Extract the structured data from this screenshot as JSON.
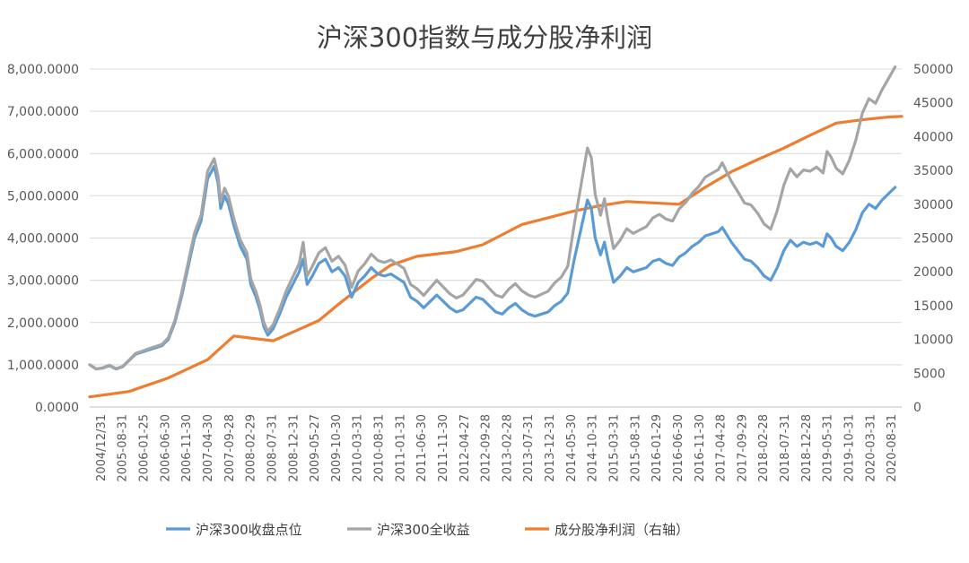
{
  "chart_data": {
    "type": "line",
    "title": "沪深300指数与成分股净利润",
    "x_ticks": [
      "2004/12/31",
      "2005-08-31",
      "2006-01-25",
      "2006-06-30",
      "2006-11-30",
      "2007-04-30",
      "2007-09-28",
      "2008-02-29",
      "2008-07-31",
      "2008-12-31",
      "2009-05-27",
      "2009-10-30",
      "2010-03-31",
      "2010-08-31",
      "2011-01-31",
      "2011-06-30",
      "2011-11-30",
      "2012-04-27",
      "2012-09-28",
      "2013-02-28",
      "2013-07-31",
      "2013-12-31",
      "2014-05-30",
      "2014-10-31",
      "2015-03-31",
      "2015-08-31",
      "2016-01-29",
      "2016-06-30",
      "2016-11-30",
      "2017-04-28",
      "2017-09-29",
      "2018-02-28",
      "2018-07-31",
      "2018-12-28",
      "2019-05-31",
      "2019-10-31",
      "2020-03-31",
      "2020-08-31"
    ],
    "y_left": {
      "min": 0,
      "max": 8000,
      "tick_labels": [
        "0.0000",
        "1,000.0000",
        "2,000.0000",
        "3,000.0000",
        "4,000.0000",
        "5,000.0000",
        "6,000.0000",
        "7,000.0000",
        "8,000.0000"
      ]
    },
    "y_right": {
      "min": 0,
      "max": 50000,
      "tick_labels": [
        "0",
        "5000",
        "10000",
        "15000",
        "20000",
        "25000",
        "30000",
        "35000",
        "40000",
        "45000",
        "50000"
      ]
    },
    "legend_position": "bottom",
    "grid": "horizontal",
    "series": [
      {
        "name": "沪深300收盘点位",
        "axis": "left",
        "color": "#5b9bd5",
        "points": [
          [
            0,
            1000
          ],
          [
            0.5,
            900
          ],
          [
            1,
            920
          ],
          [
            1.5,
            980
          ],
          [
            2,
            900
          ],
          [
            2.5,
            950
          ],
          [
            3,
            1100
          ],
          [
            3.5,
            1250
          ],
          [
            4,
            1300
          ],
          [
            4.5,
            1350
          ],
          [
            5,
            1400
          ],
          [
            5.5,
            1450
          ],
          [
            6,
            1600
          ],
          [
            6.5,
            2000
          ],
          [
            7,
            2600
          ],
          [
            7.5,
            3300
          ],
          [
            8,
            4000
          ],
          [
            8.5,
            4400
          ],
          [
            9,
            5400
          ],
          [
            9.5,
            5700
          ],
          [
            9.8,
            5300
          ],
          [
            10,
            4700
          ],
          [
            10.3,
            5000
          ],
          [
            10.6,
            4800
          ],
          [
            11,
            4300
          ],
          [
            11.5,
            3800
          ],
          [
            12,
            3500
          ],
          [
            12.3,
            2900
          ],
          [
            12.7,
            2600
          ],
          [
            13,
            2300
          ],
          [
            13.3,
            1900
          ],
          [
            13.6,
            1700
          ],
          [
            14,
            1850
          ],
          [
            14.5,
            2200
          ],
          [
            15,
            2600
          ],
          [
            15.5,
            2900
          ],
          [
            16,
            3200
          ],
          [
            16.3,
            3500
          ],
          [
            16.6,
            2900
          ],
          [
            17,
            3100
          ],
          [
            17.5,
            3400
          ],
          [
            18,
            3500
          ],
          [
            18.5,
            3200
          ],
          [
            19,
            3300
          ],
          [
            19.5,
            3100
          ],
          [
            19.8,
            2800
          ],
          [
            20,
            2600
          ],
          [
            20.5,
            2950
          ],
          [
            21,
            3100
          ],
          [
            21.5,
            3300
          ],
          [
            22,
            3150
          ],
          [
            22.5,
            3100
          ],
          [
            23,
            3150
          ],
          [
            23.5,
            3050
          ],
          [
            24,
            2950
          ],
          [
            24.5,
            2600
          ],
          [
            25,
            2500
          ],
          [
            25.5,
            2350
          ],
          [
            26,
            2500
          ],
          [
            26.5,
            2650
          ],
          [
            27,
            2500
          ],
          [
            27.5,
            2350
          ],
          [
            28,
            2250
          ],
          [
            28.5,
            2300
          ],
          [
            29,
            2450
          ],
          [
            29.5,
            2600
          ],
          [
            30,
            2550
          ],
          [
            30.5,
            2400
          ],
          [
            31,
            2250
          ],
          [
            31.5,
            2200
          ],
          [
            32,
            2350
          ],
          [
            32.5,
            2450
          ],
          [
            33,
            2300
          ],
          [
            33.5,
            2200
          ],
          [
            34,
            2150
          ],
          [
            34.5,
            2200
          ],
          [
            35,
            2250
          ],
          [
            35.5,
            2400
          ],
          [
            36,
            2500
          ],
          [
            36.5,
            2700
          ],
          [
            37,
            3500
          ],
          [
            37.5,
            4200
          ],
          [
            38,
            4900
          ],
          [
            38.3,
            4700
          ],
          [
            38.6,
            4000
          ],
          [
            39,
            3600
          ],
          [
            39.3,
            3900
          ],
          [
            39.6,
            3450
          ],
          [
            40,
            2950
          ],
          [
            40.5,
            3100
          ],
          [
            41,
            3300
          ],
          [
            41.5,
            3200
          ],
          [
            42,
            3250
          ],
          [
            42.5,
            3300
          ],
          [
            43,
            3450
          ],
          [
            43.5,
            3500
          ],
          [
            44,
            3400
          ],
          [
            44.5,
            3350
          ],
          [
            45,
            3550
          ],
          [
            45.5,
            3650
          ],
          [
            46,
            3800
          ],
          [
            46.5,
            3900
          ],
          [
            47,
            4050
          ],
          [
            47.5,
            4100
          ],
          [
            48,
            4150
          ],
          [
            48.3,
            4250
          ],
          [
            48.6,
            4100
          ],
          [
            49,
            3900
          ],
          [
            49.5,
            3700
          ],
          [
            50,
            3500
          ],
          [
            50.5,
            3450
          ],
          [
            51,
            3300
          ],
          [
            51.5,
            3100
          ],
          [
            52,
            3000
          ],
          [
            52.5,
            3300
          ],
          [
            53,
            3700
          ],
          [
            53.5,
            3950
          ],
          [
            54,
            3800
          ],
          [
            54.5,
            3900
          ],
          [
            55,
            3850
          ],
          [
            55.5,
            3900
          ],
          [
            56,
            3800
          ],
          [
            56.3,
            4100
          ],
          [
            56.6,
            4000
          ],
          [
            57,
            3800
          ],
          [
            57.5,
            3700
          ],
          [
            58,
            3900
          ],
          [
            58.5,
            4200
          ],
          [
            59,
            4600
          ],
          [
            59.5,
            4800
          ],
          [
            60,
            4700
          ],
          [
            60.5,
            4900
          ],
          [
            61,
            5050
          ],
          [
            61.5,
            5200
          ]
        ]
      },
      {
        "name": "沪深300全收益",
        "axis": "left",
        "color": "#a5a5a5",
        "points": [
          [
            0,
            1000
          ],
          [
            0.5,
            900
          ],
          [
            1,
            930
          ],
          [
            1.5,
            990
          ],
          [
            2,
            910
          ],
          [
            2.5,
            960
          ],
          [
            3,
            1110
          ],
          [
            3.5,
            1270
          ],
          [
            4,
            1320
          ],
          [
            4.5,
            1380
          ],
          [
            5,
            1430
          ],
          [
            5.5,
            1480
          ],
          [
            6,
            1640
          ],
          [
            6.5,
            2050
          ],
          [
            7,
            2680
          ],
          [
            7.5,
            3400
          ],
          [
            8,
            4120
          ],
          [
            8.5,
            4540
          ],
          [
            9,
            5580
          ],
          [
            9.5,
            5880
          ],
          [
            9.8,
            5480
          ],
          [
            10,
            4860
          ],
          [
            10.3,
            5180
          ],
          [
            10.6,
            4980
          ],
          [
            11,
            4460
          ],
          [
            11.5,
            3950
          ],
          [
            12,
            3650
          ],
          [
            12.3,
            3030
          ],
          [
            12.7,
            2720
          ],
          [
            13,
            2410
          ],
          [
            13.3,
            2000
          ],
          [
            13.6,
            1790
          ],
          [
            14,
            1950
          ],
          [
            14.5,
            2320
          ],
          [
            15,
            2750
          ],
          [
            15.5,
            3080
          ],
          [
            16,
            3400
          ],
          [
            16.3,
            3900
          ],
          [
            16.6,
            3100
          ],
          [
            17,
            3330
          ],
          [
            17.5,
            3650
          ],
          [
            18,
            3770
          ],
          [
            18.5,
            3450
          ],
          [
            19,
            3570
          ],
          [
            19.5,
            3360
          ],
          [
            19.8,
            3040
          ],
          [
            20,
            2830
          ],
          [
            20.5,
            3220
          ],
          [
            21,
            3390
          ],
          [
            21.5,
            3620
          ],
          [
            22,
            3470
          ],
          [
            22.5,
            3420
          ],
          [
            23,
            3480
          ],
          [
            23.5,
            3380
          ],
          [
            24,
            3280
          ],
          [
            24.5,
            2900
          ],
          [
            25,
            2800
          ],
          [
            25.5,
            2640
          ],
          [
            26,
            2820
          ],
          [
            26.5,
            3000
          ],
          [
            27,
            2840
          ],
          [
            27.5,
            2680
          ],
          [
            28,
            2580
          ],
          [
            28.5,
            2650
          ],
          [
            29,
            2830
          ],
          [
            29.5,
            3020
          ],
          [
            30,
            2980
          ],
          [
            30.5,
            2810
          ],
          [
            31,
            2650
          ],
          [
            31.5,
            2600
          ],
          [
            32,
            2790
          ],
          [
            32.5,
            2920
          ],
          [
            33,
            2750
          ],
          [
            33.5,
            2650
          ],
          [
            34,
            2600
          ],
          [
            34.5,
            2670
          ],
          [
            35,
            2740
          ],
          [
            35.5,
            2940
          ],
          [
            36,
            3070
          ],
          [
            36.5,
            3330
          ],
          [
            37,
            4330
          ],
          [
            37.5,
            5230
          ],
          [
            38,
            6130
          ],
          [
            38.3,
            5900
          ],
          [
            38.6,
            5030
          ],
          [
            39,
            4540
          ],
          [
            39.3,
            4930
          ],
          [
            39.6,
            4370
          ],
          [
            40,
            3750
          ],
          [
            40.5,
            3950
          ],
          [
            41,
            4220
          ],
          [
            41.5,
            4110
          ],
          [
            42,
            4190
          ],
          [
            42.5,
            4270
          ],
          [
            43,
            4480
          ],
          [
            43.5,
            4560
          ],
          [
            44,
            4450
          ],
          [
            44.5,
            4400
          ],
          [
            45,
            4690
          ],
          [
            45.5,
            4840
          ],
          [
            46,
            5060
          ],
          [
            46.5,
            5220
          ],
          [
            47,
            5440
          ],
          [
            47.5,
            5530
          ],
          [
            48,
            5620
          ],
          [
            48.3,
            5780
          ],
          [
            48.6,
            5590
          ],
          [
            49,
            5340
          ],
          [
            49.5,
            5090
          ],
          [
            50,
            4830
          ],
          [
            50.5,
            4780
          ],
          [
            51,
            4590
          ],
          [
            51.5,
            4330
          ],
          [
            52,
            4210
          ],
          [
            52.5,
            4650
          ],
          [
            53,
            5250
          ],
          [
            53.5,
            5640
          ],
          [
            54,
            5450
          ],
          [
            54.5,
            5610
          ],
          [
            55,
            5580
          ],
          [
            55.5,
            5680
          ],
          [
            56,
            5540
          ],
          [
            56.3,
            6050
          ],
          [
            56.6,
            5920
          ],
          [
            57,
            5650
          ],
          [
            57.5,
            5520
          ],
          [
            58,
            5840
          ],
          [
            58.5,
            6320
          ],
          [
            59,
            6960
          ],
          [
            59.5,
            7300
          ],
          [
            60,
            7190
          ],
          [
            60.5,
            7510
          ],
          [
            61,
            7780
          ],
          [
            61.5,
            8050
          ]
        ]
      },
      {
        "name": "成分股净利润（右轴）",
        "axis": "right",
        "color": "#ed7d31",
        "points": [
          [
            0,
            1500
          ],
          [
            3,
            2300
          ],
          [
            6,
            4300
          ],
          [
            9,
            7000
          ],
          [
            11,
            10500
          ],
          [
            14,
            9800
          ],
          [
            16,
            11500
          ],
          [
            17.5,
            12800
          ],
          [
            19,
            15200
          ],
          [
            20.5,
            17500
          ],
          [
            21.5,
            19000
          ],
          [
            23,
            21000
          ],
          [
            25,
            22300
          ],
          [
            28,
            23000
          ],
          [
            30,
            24000
          ],
          [
            32,
            26000
          ],
          [
            33,
            27000
          ],
          [
            35,
            28000
          ],
          [
            37,
            29000
          ],
          [
            39,
            29800
          ],
          [
            41,
            30400
          ],
          [
            43,
            30200
          ],
          [
            45,
            30000
          ],
          [
            47,
            32500
          ],
          [
            49,
            34800
          ],
          [
            51,
            36600
          ],
          [
            53,
            38300
          ],
          [
            55,
            40200
          ],
          [
            57,
            42000
          ],
          [
            59,
            42500
          ],
          [
            61,
            42900
          ],
          [
            62,
            43000
          ]
        ]
      }
    ]
  }
}
